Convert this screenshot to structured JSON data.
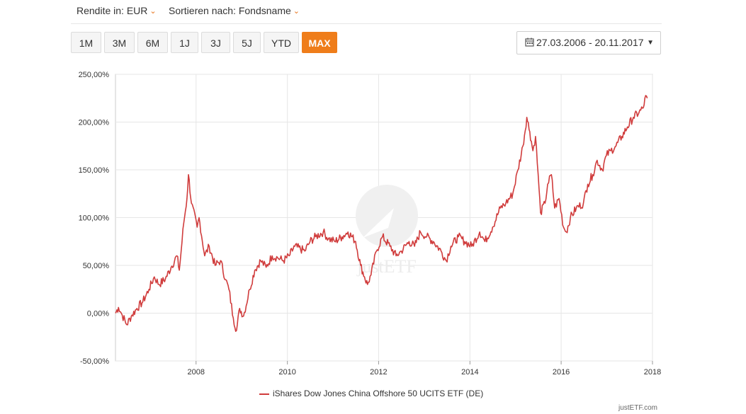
{
  "toolbar": {
    "rendite_label": "Rendite in: EUR",
    "sort_label": "Sortieren nach: Fondsname",
    "periods": [
      "1M",
      "3M",
      "6M",
      "1J",
      "3J",
      "5J",
      "YTD",
      "MAX"
    ],
    "active_period": "MAX",
    "date_range": "27.03.2006 - 20.11.2017"
  },
  "watermark": "justETF",
  "credit": "justETF.com",
  "colors": {
    "accent": "#ef7d1a",
    "series": "#d03c3c",
    "grid": "#e6e6e6"
  },
  "chart_data": {
    "type": "line",
    "title": "",
    "xlabel": "",
    "ylabel": "",
    "x_ticks": [
      "2008",
      "2010",
      "2012",
      "2014",
      "2016",
      "2018"
    ],
    "y_ticks": [
      "-50,00%",
      "0,00%",
      "50,00%",
      "100,00%",
      "150,00%",
      "200,00%",
      "250,00%"
    ],
    "ylim": [
      -50,
      250
    ],
    "xlim": [
      "2006-03-27",
      "2018-01-01"
    ],
    "grid": true,
    "legend_position": "bottom",
    "series": [
      {
        "name": "iShares Dow Jones China Offshore 50 UCITS ETF (DE)",
        "color": "#d03c3c",
        "x": [
          "2006-03-27",
          "2006-04-20",
          "2006-05-20",
          "2006-06-25",
          "2006-08-01",
          "2006-09-15",
          "2006-11-01",
          "2006-12-20",
          "2007-02-01",
          "2007-03-10",
          "2007-05-01",
          "2007-06-15",
          "2007-08-01",
          "2007-08-20",
          "2007-09-25",
          "2007-10-20",
          "2007-11-01",
          "2007-11-25",
          "2008-01-10",
          "2008-01-25",
          "2008-03-10",
          "2008-04-15",
          "2008-06-01",
          "2008-07-15",
          "2008-08-25",
          "2008-09-20",
          "2008-10-25",
          "2008-11-20",
          "2008-12-15",
          "2009-01-15",
          "2009-03-05",
          "2009-04-15",
          "2009-06-01",
          "2009-07-15",
          "2009-09-01",
          "2009-10-15",
          "2009-12-01",
          "2010-01-15",
          "2010-03-01",
          "2010-05-20",
          "2010-07-01",
          "2010-08-15",
          "2010-10-15",
          "2010-11-25",
          "2011-01-15",
          "2011-03-15",
          "2011-05-01",
          "2011-07-01",
          "2011-08-10",
          "2011-09-10",
          "2011-10-04",
          "2011-11-01",
          "2011-12-15",
          "2012-02-01",
          "2012-04-01",
          "2012-05-20",
          "2012-07-01",
          "2012-09-01",
          "2012-10-15",
          "2012-12-01",
          "2013-01-20",
          "2013-03-15",
          "2013-05-15",
          "2013-06-25",
          "2013-08-01",
          "2013-10-01",
          "2013-11-20",
          "2014-01-15",
          "2014-03-20",
          "2014-05-01",
          "2014-07-01",
          "2014-09-01",
          "2014-10-15",
          "2014-12-10",
          "2015-01-20",
          "2015-03-01",
          "2015-04-01",
          "2015-04-25",
          "2015-05-20",
          "2015-06-10",
          "2015-07-08",
          "2015-07-20",
          "2015-08-25",
          "2015-09-15",
          "2015-10-15",
          "2015-11-10",
          "2015-12-15",
          "2016-01-20",
          "2016-02-12",
          "2016-03-15",
          "2016-05-01",
          "2016-06-27",
          "2016-08-01",
          "2016-09-10",
          "2016-10-15",
          "2016-11-25",
          "2016-12-28",
          "2017-02-01",
          "2017-03-15",
          "2017-05-01",
          "2017-06-15",
          "2017-08-01",
          "2017-09-15",
          "2017-10-20",
          "2017-11-01",
          "2017-11-20"
        ],
        "values": [
          0,
          6,
          -2,
          -12,
          -3,
          5,
          12,
          25,
          38,
          30,
          36,
          48,
          60,
          45,
          95,
          120,
          145,
          115,
          90,
          100,
          60,
          70,
          50,
          55,
          35,
          25,
          -5,
          -18,
          5,
          -3,
          25,
          45,
          55,
          48,
          60,
          58,
          55,
          60,
          70,
          65,
          75,
          80,
          85,
          78,
          75,
          80,
          85,
          75,
          50,
          38,
          30,
          40,
          65,
          80,
          70,
          60,
          65,
          75,
          70,
          85,
          80,
          75,
          65,
          55,
          70,
          80,
          75,
          70,
          85,
          75,
          90,
          110,
          115,
          125,
          150,
          175,
          205,
          190,
          170,
          185,
          130,
          105,
          115,
          135,
          145,
          110,
          120,
          90,
          85,
          100,
          110,
          115,
          135,
          145,
          160,
          150,
          165,
          170,
          175,
          185,
          195,
          205,
          210,
          215,
          225,
          225
        ]
      }
    ]
  }
}
